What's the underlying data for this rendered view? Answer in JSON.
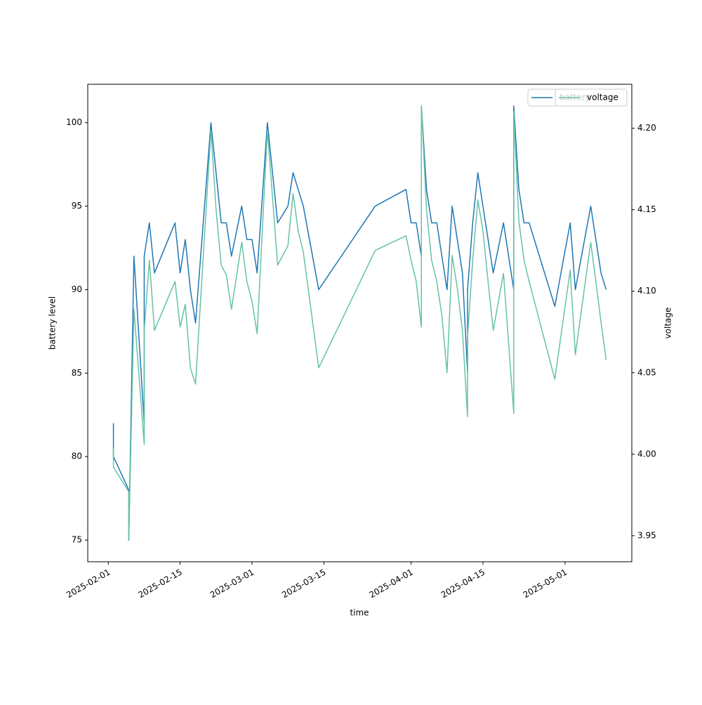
{
  "chart_data": {
    "type": "line",
    "x_label": "time",
    "y_label": "battery level",
    "y2_label": "voltage",
    "x": [
      "2025-02-02",
      "2025-02-02",
      "2025-02-05",
      "2025-02-05",
      "2025-02-06",
      "2025-02-08",
      "2025-02-08",
      "2025-02-09",
      "2025-02-10",
      "2025-02-14",
      "2025-02-15",
      "2025-02-16",
      "2025-02-17",
      "2025-02-18",
      "2025-02-21",
      "2025-02-22",
      "2025-02-23",
      "2025-02-24",
      "2025-02-25",
      "2025-02-27",
      "2025-02-28",
      "2025-03-01",
      "2025-03-02",
      "2025-03-04",
      "2025-03-06",
      "2025-03-08",
      "2025-03-09",
      "2025-03-10",
      "2025-03-11",
      "2025-03-14",
      "2025-03-25",
      "2025-03-31",
      "2025-04-01",
      "2025-04-02",
      "2025-04-03",
      "2025-04-03",
      "2025-04-04",
      "2025-04-05",
      "2025-04-06",
      "2025-04-07",
      "2025-04-08",
      "2025-04-09",
      "2025-04-10",
      "2025-04-11",
      "2025-04-12",
      "2025-04-12",
      "2025-04-13",
      "2025-04-14",
      "2025-04-15",
      "2025-04-16",
      "2025-04-17",
      "2025-04-19",
      "2025-04-21",
      "2025-04-21",
      "2025-04-22",
      "2025-04-23",
      "2025-04-24",
      "2025-04-29",
      "2025-05-02",
      "2025-05-03",
      "2025-05-06",
      "2025-05-07",
      "2025-05-08",
      "2025-05-09"
    ],
    "series": [
      {
        "name": "battery",
        "color": "#1f77b4",
        "axis": "y",
        "values": [
          82,
          80,
          78,
          75,
          92,
          82,
          92,
          94,
          91,
          94,
          91,
          93,
          90,
          88,
          100,
          97,
          94,
          94,
          92,
          95,
          93,
          93,
          91,
          100,
          94,
          95,
          97,
          96,
          95,
          90,
          95,
          96,
          94,
          94,
          92,
          101,
          96,
          94,
          94,
          92,
          90,
          95,
          93,
          91,
          85,
          90,
          94,
          97,
          95,
          93,
          91,
          94,
          90,
          101,
          96,
          94,
          94,
          89,
          94,
          90,
          95,
          93,
          91,
          90
        ]
      },
      {
        "name": "voltage",
        "color": "#66c2a5",
        "axis": "y2",
        "values": [
          4.004,
          3.992,
          3.977,
          3.948,
          4.089,
          4.006,
          4.076,
          4.119,
          4.076,
          4.106,
          4.078,
          4.092,
          4.053,
          4.043,
          4.199,
          4.15,
          4.116,
          4.11,
          4.089,
          4.13,
          4.106,
          4.094,
          4.074,
          4.199,
          4.116,
          4.128,
          4.16,
          4.137,
          4.124,
          4.053,
          4.125,
          4.134,
          4.119,
          4.106,
          4.078,
          4.214,
          4.15,
          4.119,
          4.106,
          4.085,
          4.05,
          4.122,
          4.102,
          4.076,
          4.023,
          4.072,
          4.119,
          4.156,
          4.137,
          4.106,
          4.076,
          4.111,
          4.025,
          4.21,
          4.143,
          4.119,
          4.106,
          4.046,
          4.113,
          4.061,
          4.13,
          4.106,
          4.081,
          4.058
        ]
      }
    ],
    "xlim": [
      "2025-01-28",
      "2025-05-14"
    ],
    "xticks": [
      "2025-02-01",
      "2025-02-15",
      "2025-03-01",
      "2025-03-15",
      "2025-04-01",
      "2025-04-15",
      "2025-05-01"
    ],
    "ylim": [
      73.7,
      102.3
    ],
    "yticks": [
      75,
      80,
      85,
      90,
      95,
      100
    ],
    "y2lim": [
      3.934,
      4.227
    ],
    "y2ticks": [
      3.95,
      {
        "value": 4,
        "label": "4.00"
      },
      4.05,
      {
        "value": 4.1,
        "label": "4.10"
      },
      4.15,
      {
        "value": 4.2,
        "label": "4.20"
      }
    ],
    "legend": "upper right",
    "grid": false
  }
}
